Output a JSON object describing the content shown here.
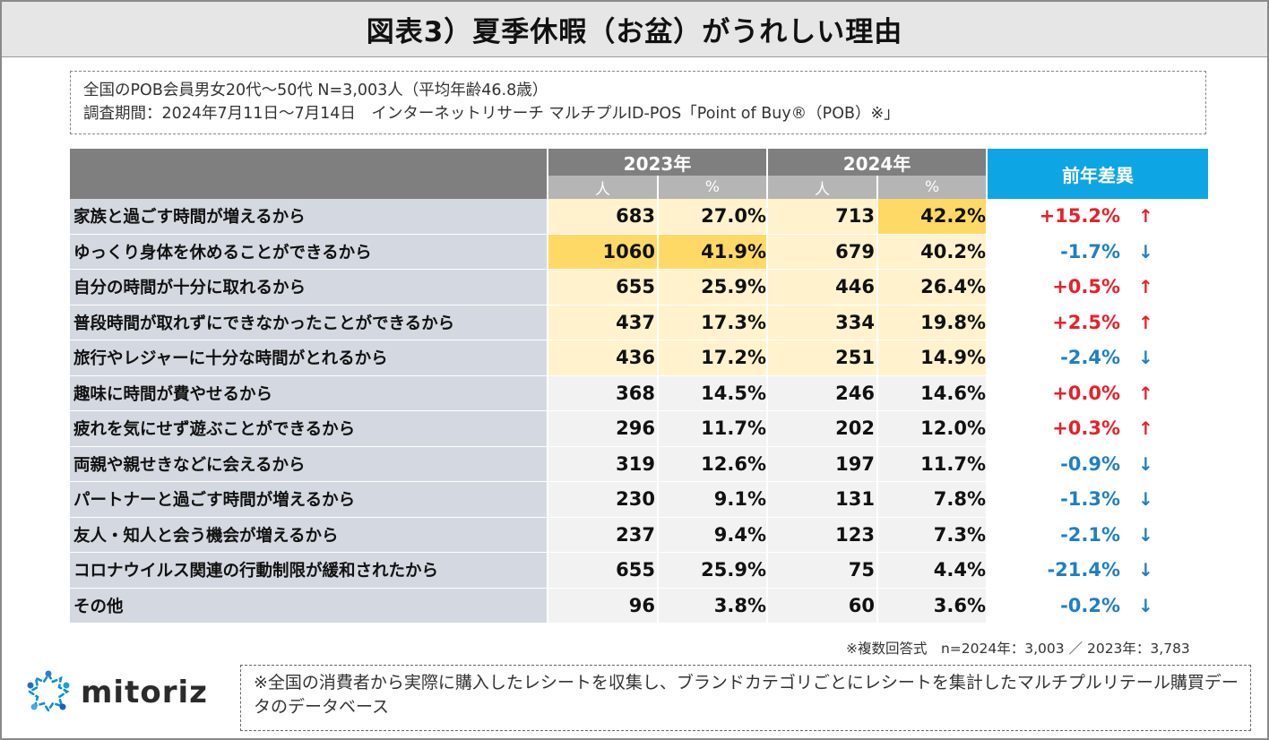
{
  "title": "図表3）夏季休暇（お盆）がうれしい理由",
  "survey": {
    "line1": "全国のPOB会員男女20代〜50代 N=3,003人（平均年齢46.8歳）",
    "line2": "調査期間：2024年7月11日〜7月14日　インターネットリサーチ マルチプルID-POS「Point of Buy®（POB）※」"
  },
  "table": {
    "year_2023": "2023年",
    "year_2024": "2024年",
    "unit_people": "人",
    "unit_pct": "%",
    "diff_header": "前年差異",
    "rows": [
      {
        "label": "家族と過ごす時間が増えるから",
        "n2023": "683",
        "p2023": "27.0%",
        "n2024": "713",
        "p2024": "42.2%",
        "diff": "+15.2%",
        "arrow": "↑",
        "dir": "up"
      },
      {
        "label": "ゆっくり身体を休めることができるから",
        "n2023": "1060",
        "p2023": "41.9%",
        "n2024": "679",
        "p2024": "40.2%",
        "diff": "-1.7%",
        "arrow": "↓",
        "dir": "down"
      },
      {
        "label": "自分の時間が十分に取れるから",
        "n2023": "655",
        "p2023": "25.9%",
        "n2024": "446",
        "p2024": "26.4%",
        "diff": "+0.5%",
        "arrow": "↑",
        "dir": "up"
      },
      {
        "label": "普段時間が取れずにできなかったことができるから",
        "n2023": "437",
        "p2023": "17.3%",
        "n2024": "334",
        "p2024": "19.8%",
        "diff": "+2.5%",
        "arrow": "↑",
        "dir": "up"
      },
      {
        "label": "旅行やレジャーに十分な時間がとれるから",
        "n2023": "436",
        "p2023": "17.2%",
        "n2024": "251",
        "p2024": "14.9%",
        "diff": "-2.4%",
        "arrow": "↓",
        "dir": "down"
      },
      {
        "label": "趣味に時間が費やせるから",
        "n2023": "368",
        "p2023": "14.5%",
        "n2024": "246",
        "p2024": "14.6%",
        "diff": "+0.0%",
        "arrow": "↑",
        "dir": "up"
      },
      {
        "label": "疲れを気にせず遊ぶことができるから",
        "n2023": "296",
        "p2023": "11.7%",
        "n2024": "202",
        "p2024": "12.0%",
        "diff": "+0.3%",
        "arrow": "↑",
        "dir": "up"
      },
      {
        "label": "両親や親せきなどに会えるから",
        "n2023": "319",
        "p2023": "12.6%",
        "n2024": "197",
        "p2024": "11.7%",
        "diff": "-0.9%",
        "arrow": "↓",
        "dir": "down"
      },
      {
        "label": "パートナーと過ごす時間が増えるから",
        "n2023": "230",
        "p2023": "9.1%",
        "n2024": "131",
        "p2024": "7.8%",
        "diff": "-1.3%",
        "arrow": "↓",
        "dir": "down"
      },
      {
        "label": "友人・知人と会う機会が増えるから",
        "n2023": "237",
        "p2023": "9.4%",
        "n2024": "123",
        "p2024": "7.3%",
        "diff": "-2.1%",
        "arrow": "↓",
        "dir": "down"
      },
      {
        "label": "コロナウイルス関連の行動制限が緩和されたから",
        "n2023": "655",
        "p2023": "25.9%",
        "n2024": "75",
        "p2024": "4.4%",
        "diff": "-21.4%",
        "arrow": "↓",
        "dir": "down"
      },
      {
        "label": "その他",
        "n2023": "96",
        "p2023": "3.8%",
        "n2024": "60",
        "p2024": "3.6%",
        "diff": "-0.2%",
        "arrow": "↓",
        "dir": "down"
      }
    ]
  },
  "note": "※複数回答式　n=2024年：3,003 ／ 2023年：3,783",
  "logo_text": "mitoriz",
  "footer": "※全国の消費者から実際に購入したレシートを収集し、ブランドカテゴリごとにレシートを集計したマルチプルリテール購買データのデータベース",
  "colors": {
    "header_gray": "#7f7f7f",
    "diff_header_blue": "#0ea5e4",
    "up_red": "#e8202a",
    "down_blue": "#1f7fc6",
    "highlight_strong": "#ffd966",
    "highlight_light": "#fff2cc"
  }
}
